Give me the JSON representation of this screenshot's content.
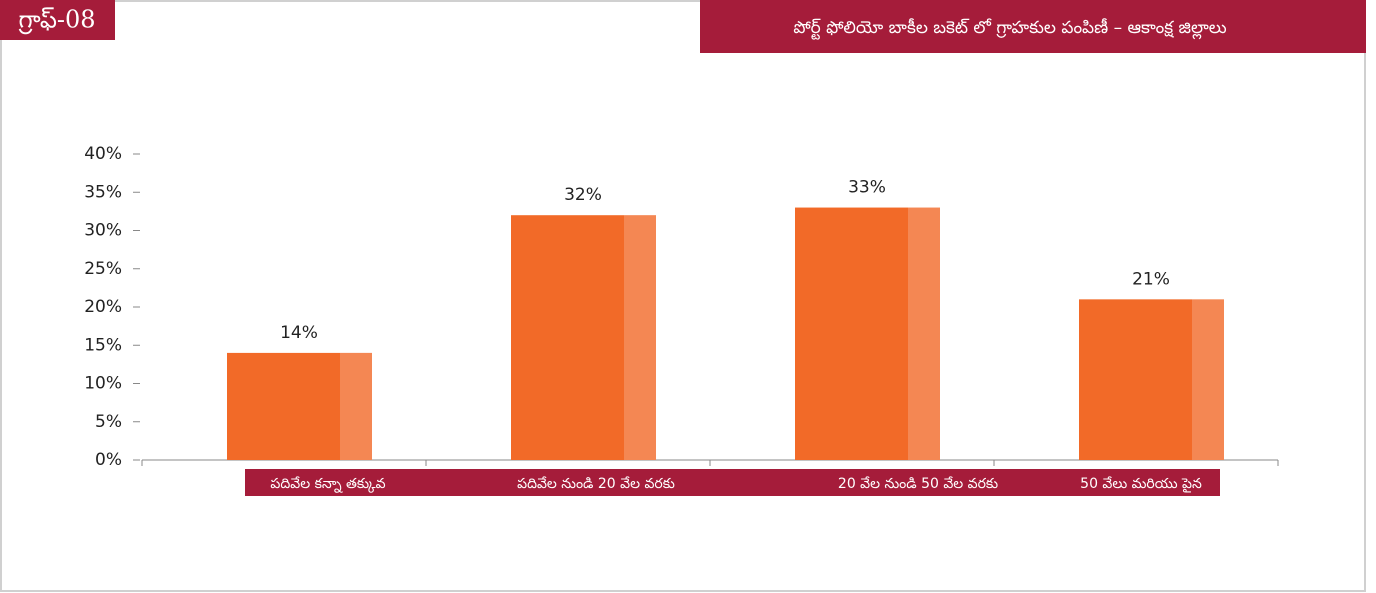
{
  "chart_data": {
    "type": "bar",
    "badge": "గ్రాఫ్-08",
    "title": "పోర్ట్ ఫోలియో బాకీల బకెట్ లో గ్రాహకుల పంపిణీ – ఆకాంక్ష జిల్లాలు",
    "categories": [
      "పదివేల కన్నా తక్కువ",
      "పదివేల నుండి 20 వేల వరకు",
      "20 వేల నుండి 50 వేల వరకు",
      "50 వేలు మరియు పైన"
    ],
    "values": [
      14,
      32,
      33,
      21
    ],
    "value_labels": [
      "14%",
      "32%",
      "33%",
      "21%"
    ],
    "color": "#f26a28",
    "ylim": [
      0,
      40
    ],
    "yticks": [
      {
        "value": 0,
        "label": "0%"
      },
      {
        "value": 5,
        "label": "5%"
      },
      {
        "value": 10,
        "label": "10%"
      },
      {
        "value": 15,
        "label": "15%"
      },
      {
        "value": 20,
        "label": "20%"
      },
      {
        "value": 25,
        "label": "25%"
      },
      {
        "value": 30,
        "label": "30%"
      },
      {
        "value": 35,
        "label": "35%"
      },
      {
        "value": 40,
        "label": "40%"
      }
    ],
    "grid": false
  }
}
